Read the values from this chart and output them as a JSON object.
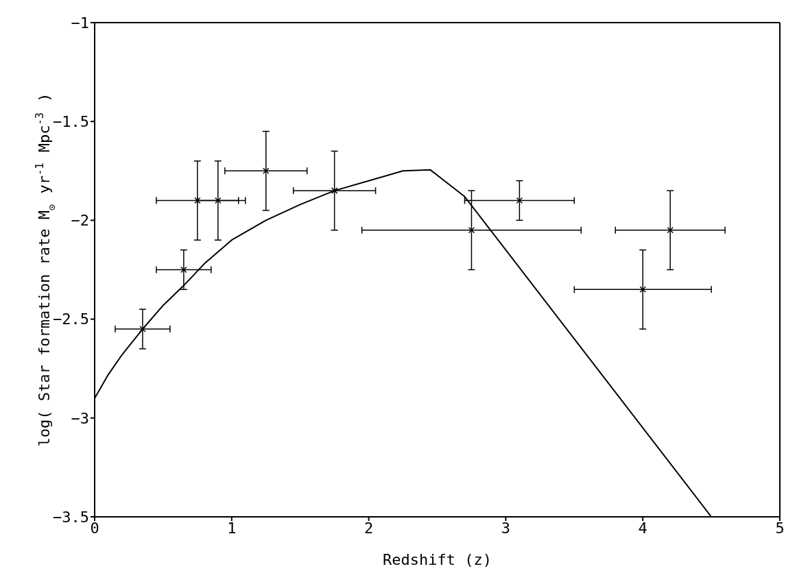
{
  "chart_data": {
    "type": "scatter",
    "xlabel": "Redshift (z)",
    "ylabel": "log( Star formation rate M$_{⊙}$ yr$^{-1}$ Mpc$^{-3}$ )",
    "xlim": [
      0,
      5
    ],
    "xticks": [
      0,
      1,
      2,
      3,
      4,
      5
    ],
    "ylim": [
      -3.5,
      -1
    ],
    "yticks": [
      -3.5,
      -3,
      -2.5,
      -2,
      -1.5,
      -1
    ],
    "grid": false,
    "legend": false,
    "series": [
      {
        "marker": "cross",
        "color": "#000000",
        "x": [
          0.35,
          0.65,
          0.75,
          0.9,
          1.25,
          1.75,
          2.75,
          3.1,
          4.0,
          4.2
        ],
        "values": [
          -2.55,
          -2.25,
          -1.9,
          -1.9,
          -1.75,
          -1.85,
          -2.05,
          -1.9,
          -2.35,
          -2.05
        ],
        "errors": [
          0.1,
          0.1,
          0.2,
          0.2,
          0.2,
          0.2,
          0.2,
          0.1,
          0.2,
          0.2
        ],
        "xerrors": [
          0.2,
          0.2,
          0.3,
          [
            0.75,
            1.1
          ],
          0.3,
          0.3,
          0.8,
          0.4,
          0.5,
          0.4
        ]
      },
      {
        "type": "line",
        "marker": "none",
        "color": "#000000",
        "line_style": "solid",
        "x": [
          0,
          0.1,
          0.2,
          0.35,
          0.5,
          0.65,
          0.8,
          1.0,
          1.25,
          1.5,
          1.75,
          2.0,
          2.25,
          2.45,
          2.7,
          4.5
        ],
        "values": [
          -2.9,
          -2.78,
          -2.68,
          -2.55,
          -2.43,
          -2.33,
          -2.22,
          -2.1,
          -2.0,
          -1.92,
          -1.85,
          -1.8,
          -1.75,
          -1.745,
          -1.88,
          -3.5
        ]
      }
    ]
  }
}
